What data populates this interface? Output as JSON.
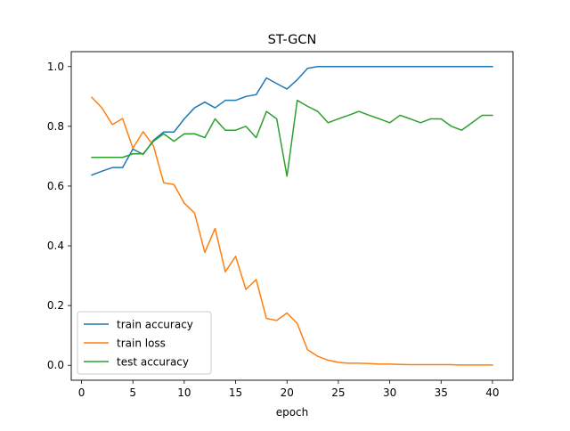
{
  "chart_data": {
    "type": "line",
    "title": "ST-GCN",
    "xlabel": "epoch",
    "ylabel": "",
    "xlim": [
      -1,
      42
    ],
    "ylim": [
      -0.05,
      1.05
    ],
    "xticks": [
      0,
      5,
      10,
      15,
      20,
      25,
      30,
      35,
      40
    ],
    "yticks": [
      0.0,
      0.2,
      0.4,
      0.6,
      0.8,
      1.0
    ],
    "ytick_labels": [
      "0.0",
      "0.2",
      "0.4",
      "0.6",
      "0.8",
      "1.0"
    ],
    "grid": false,
    "legend_position": "lower-left",
    "x": [
      1,
      2,
      3,
      4,
      5,
      6,
      7,
      8,
      9,
      10,
      11,
      12,
      13,
      14,
      15,
      16,
      17,
      18,
      19,
      20,
      21,
      22,
      23,
      24,
      25,
      26,
      27,
      28,
      29,
      30,
      31,
      32,
      33,
      34,
      35,
      36,
      37,
      38,
      39,
      40
    ],
    "series": [
      {
        "name": "train accuracy",
        "color": "#1f77b4",
        "values": [
          0.637,
          0.65,
          0.662,
          0.662,
          0.724,
          0.706,
          0.753,
          0.781,
          0.781,
          0.825,
          0.862,
          0.881,
          0.862,
          0.887,
          0.887,
          0.9,
          0.906,
          0.962,
          0.943,
          0.925,
          0.956,
          0.994,
          1.0,
          1.0,
          1.0,
          1.0,
          1.0,
          1.0,
          1.0,
          1.0,
          1.0,
          1.0,
          1.0,
          1.0,
          1.0,
          1.0,
          1.0,
          1.0,
          1.0,
          1.0
        ]
      },
      {
        "name": "train loss",
        "color": "#ff7f0e",
        "values": [
          0.897,
          0.861,
          0.806,
          0.826,
          0.727,
          0.782,
          0.735,
          0.611,
          0.605,
          0.543,
          0.51,
          0.378,
          0.458,
          0.313,
          0.365,
          0.254,
          0.287,
          0.157,
          0.15,
          0.175,
          0.14,
          0.052,
          0.03,
          0.017,
          0.01,
          0.007,
          0.007,
          0.006,
          0.004,
          0.004,
          0.003,
          0.002,
          0.002,
          0.002,
          0.002,
          0.002,
          0.001,
          0.001,
          0.001,
          0.001
        ]
      },
      {
        "name": "test accuracy",
        "color": "#2ca02c",
        "values": [
          0.696,
          0.696,
          0.696,
          0.696,
          0.708,
          0.708,
          0.75,
          0.775,
          0.75,
          0.775,
          0.775,
          0.762,
          0.825,
          0.787,
          0.787,
          0.8,
          0.762,
          0.85,
          0.825,
          0.633,
          0.887,
          0.867,
          0.85,
          0.812,
          0.825,
          0.837,
          0.85,
          0.837,
          0.825,
          0.812,
          0.837,
          0.825,
          0.812,
          0.825,
          0.825,
          0.8,
          0.787,
          0.812,
          0.837,
          0.837
        ]
      }
    ]
  }
}
